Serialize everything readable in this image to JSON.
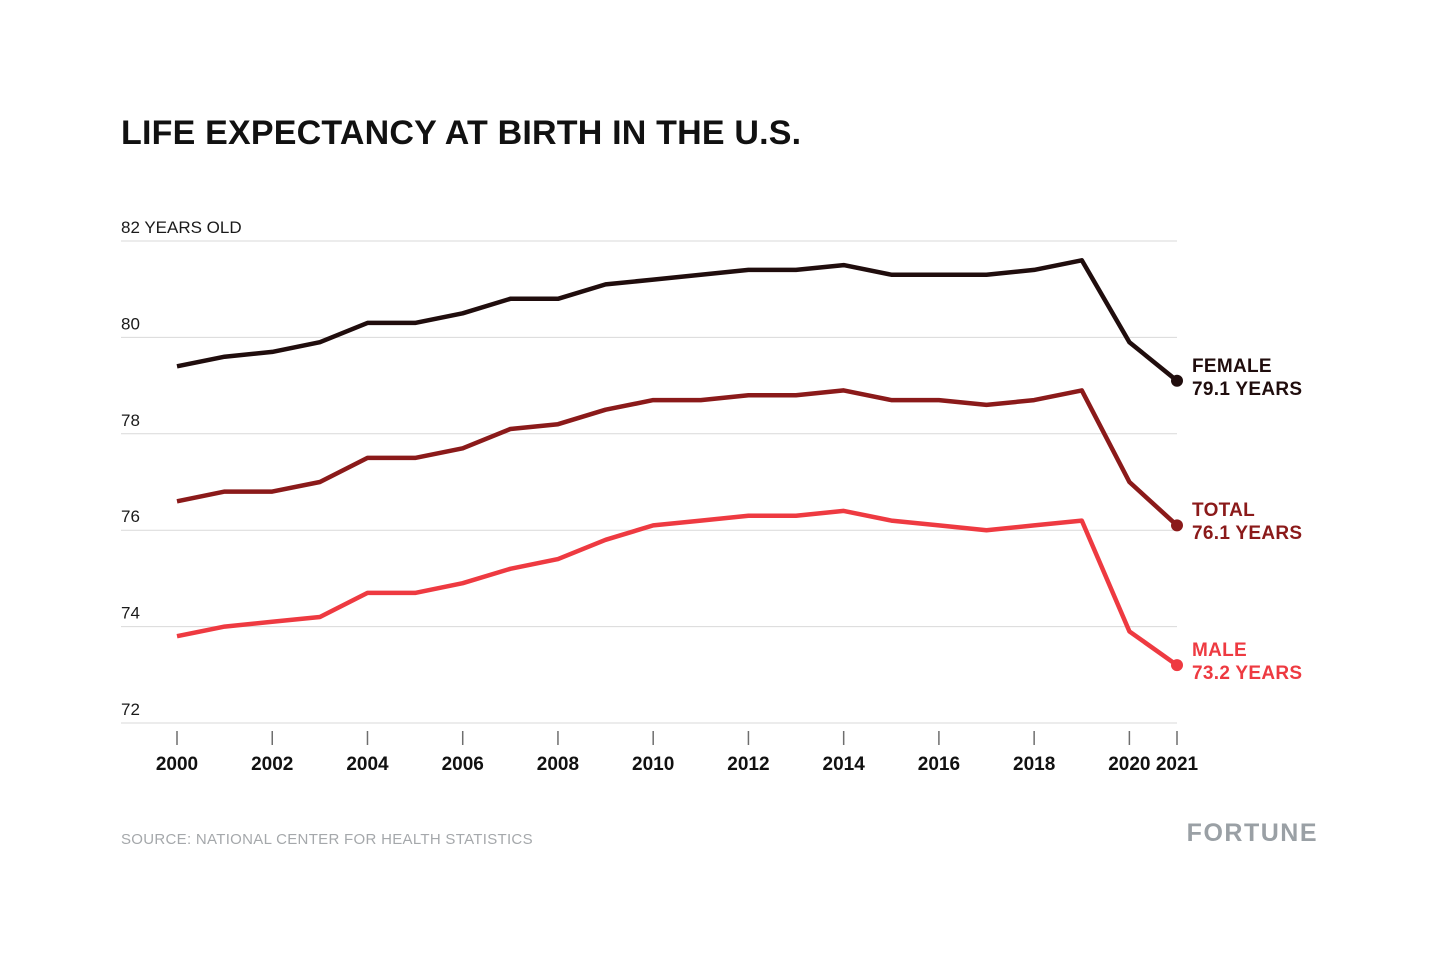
{
  "title": "LIFE EXPECTANCY AT BIRTH IN THE U.S.",
  "footer": {
    "source": "SOURCE: NATIONAL CENTER FOR HEALTH STATISTICS",
    "brand": "FORTUNE"
  },
  "colors": {
    "background": "#ffffff",
    "grid": "#d9d9d9",
    "tick": "#6e6e6e",
    "axis_text": "#1a1a1a",
    "x_label_text": "#111111",
    "source_text": "#a5a8ab",
    "brand_text": "#9aa0a5",
    "female": "#200d0d",
    "total": "#8b1a1a",
    "male": "#ee3a41"
  },
  "chart_data": {
    "type": "line",
    "title": "LIFE EXPECTANCY AT BIRTH IN THE U.S.",
    "grid": true,
    "legend_position": "right-end-annotations",
    "ylim": [
      72,
      82
    ],
    "x": [
      2000,
      2001,
      2002,
      2003,
      2004,
      2005,
      2006,
      2007,
      2008,
      2009,
      2010,
      2011,
      2012,
      2013,
      2014,
      2015,
      2016,
      2017,
      2018,
      2019,
      2020,
      2021
    ],
    "y_ticks": [
      {
        "value": 82,
        "label": "82 YEARS OLD"
      },
      {
        "value": 80,
        "label": "80"
      },
      {
        "value": 78,
        "label": "78"
      },
      {
        "value": 76,
        "label": "76"
      },
      {
        "value": 74,
        "label": "74"
      },
      {
        "value": 72,
        "label": "72"
      }
    ],
    "x_ticks": [
      {
        "year": 2000,
        "label": "2000"
      },
      {
        "year": 2002,
        "label": "2002"
      },
      {
        "year": 2004,
        "label": "2004"
      },
      {
        "year": 2006,
        "label": "2006"
      },
      {
        "year": 2008,
        "label": "2008"
      },
      {
        "year": 2010,
        "label": "2010"
      },
      {
        "year": 2012,
        "label": "2012"
      },
      {
        "year": 2014,
        "label": "2014"
      },
      {
        "year": 2016,
        "label": "2016"
      },
      {
        "year": 2018,
        "label": "2018"
      },
      {
        "year": 2020,
        "label": "2020"
      },
      {
        "year": 2021,
        "label": "2021"
      }
    ],
    "series": [
      {
        "id": "female",
        "name": "FEMALE",
        "end_label": "79.1 YEARS",
        "end_value": 79.1,
        "color": "#200d0d",
        "values": [
          79.4,
          79.6,
          79.7,
          79.9,
          80.3,
          80.3,
          80.5,
          80.8,
          80.8,
          81.1,
          81.2,
          81.3,
          81.4,
          81.4,
          81.5,
          81.3,
          81.3,
          81.3,
          81.4,
          81.6,
          79.9,
          79.1
        ]
      },
      {
        "id": "total",
        "name": "TOTAL",
        "end_label": "76.1 YEARS",
        "end_value": 76.1,
        "color": "#8b1a1a",
        "values": [
          76.6,
          76.8,
          76.8,
          77.0,
          77.5,
          77.5,
          77.7,
          78.1,
          78.2,
          78.5,
          78.7,
          78.7,
          78.8,
          78.8,
          78.9,
          78.7,
          78.7,
          78.6,
          78.7,
          78.9,
          77.0,
          76.1
        ]
      },
      {
        "id": "male",
        "name": "MALE",
        "end_label": "73.2 YEARS",
        "end_value": 73.2,
        "color": "#ee3a41",
        "values": [
          73.8,
          74.0,
          74.1,
          74.2,
          74.7,
          74.7,
          74.9,
          75.2,
          75.4,
          75.8,
          76.1,
          76.2,
          76.3,
          76.3,
          76.4,
          76.2,
          76.1,
          76.0,
          76.1,
          76.2,
          73.9,
          73.2
        ]
      }
    ]
  }
}
